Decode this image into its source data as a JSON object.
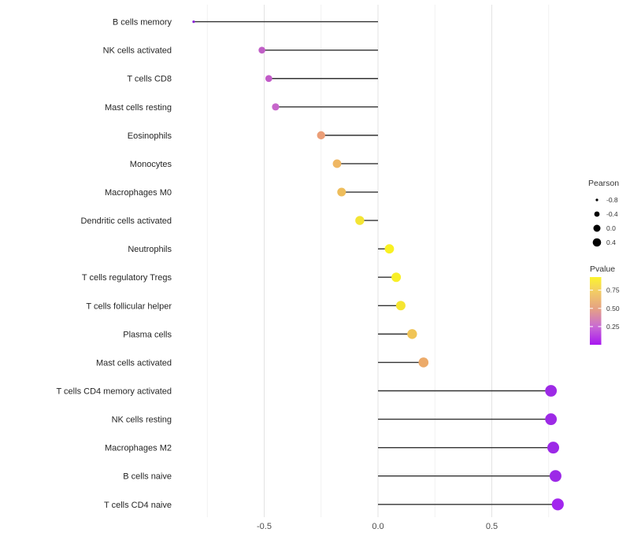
{
  "chart_data": {
    "type": "lollipop",
    "orientation": "horizontal",
    "title": "",
    "xlabel": "",
    "ylabel": "",
    "x_axis": {
      "tick_labels": [
        "-0.5",
        "0.0",
        "0.5"
      ],
      "tick_values": [
        -0.5,
        0.0,
        0.5
      ],
      "major_gridlines": [
        -0.5,
        0.0,
        0.5
      ],
      "minor_gridlines": [
        -0.75,
        -0.25,
        0.25,
        0.75
      ],
      "range": [
        -0.87,
        0.87
      ],
      "grid": "vertical-only"
    },
    "points": [
      {
        "label": "B cells memory",
        "pearson": -0.81,
        "pvalue": 0.01,
        "color": "#8b25d8",
        "r": 1.6
      },
      {
        "label": "NK cells activated",
        "pearson": -0.51,
        "pvalue": 0.2,
        "color": "#c05ec6",
        "r": 4.3
      },
      {
        "label": "T cells CD8",
        "pearson": -0.48,
        "pvalue": 0.21,
        "color": "#c25bc8",
        "r": 4.4
      },
      {
        "label": "Mast cells resting",
        "pearson": -0.45,
        "pvalue": 0.24,
        "color": "#c766cb",
        "r": 4.6
      },
      {
        "label": "Eosinophils",
        "pearson": -0.25,
        "pvalue": 0.55,
        "color": "#eb9e77",
        "r": 5.2
      },
      {
        "label": "Monocytes",
        "pearson": -0.18,
        "pvalue": 0.63,
        "color": "#efb763",
        "r": 5.4
      },
      {
        "label": "Macrophages M0",
        "pearson": -0.16,
        "pvalue": 0.65,
        "color": "#eebd5b",
        "r": 5.5
      },
      {
        "label": "Dendritic cells activated",
        "pearson": -0.08,
        "pvalue": 0.8,
        "color": "#f3e434",
        "r": 5.7
      },
      {
        "label": "Neutrophils",
        "pearson": 0.05,
        "pvalue": 0.9,
        "color": "#f9f122",
        "r": 5.9
      },
      {
        "label": "T cells regulatory  Tregs",
        "pearson": 0.08,
        "pvalue": 0.88,
        "color": "#f8ef27",
        "r": 6.0
      },
      {
        "label": "T cells follicular helper",
        "pearson": 0.1,
        "pvalue": 0.84,
        "color": "#f5e531",
        "r": 6.0
      },
      {
        "label": "Plasma cells",
        "pearson": 0.15,
        "pvalue": 0.66,
        "color": "#f0c456",
        "r": 6.2
      },
      {
        "label": "Mast cells activated",
        "pearson": 0.2,
        "pvalue": 0.57,
        "color": "#ecaa69",
        "r": 6.3
      },
      {
        "label": "T cells CD4 memory activated",
        "pearson": 0.76,
        "pvalue": 0.02,
        "color": "#9d2ae6",
        "r": 7.4
      },
      {
        "label": "NK cells resting",
        "pearson": 0.76,
        "pvalue": 0.02,
        "color": "#9d2ae6",
        "r": 7.4
      },
      {
        "label": "Macrophages M2",
        "pearson": 0.77,
        "pvalue": 0.015,
        "color": "#9c29e7",
        "r": 7.5
      },
      {
        "label": "B cells naive",
        "pearson": 0.78,
        "pvalue": 0.015,
        "color": "#9c29e7",
        "r": 7.5
      },
      {
        "label": "T cells CD4 naive",
        "pearson": 0.79,
        "pvalue": 0.01,
        "color": "#a226ee",
        "r": 7.6
      }
    ],
    "legend": {
      "position": "right",
      "pearson": {
        "title": "Pearson",
        "entries": [
          {
            "label": "-0.8",
            "r": 1.6
          },
          {
            "label": "-0.4",
            "r": 3.4
          },
          {
            "label": "0.0",
            "r": 4.5
          },
          {
            "label": "0.4",
            "r": 5.3
          }
        ],
        "dot_color": "#000000"
      },
      "pvalue": {
        "title": "Pvalue",
        "tick_labels": [
          "0.75",
          "0.50",
          "0.25"
        ],
        "tick_values": [
          0.75,
          0.5,
          0.25
        ],
        "bar_range": [
          0.0,
          0.93
        ],
        "gradient_stops": [
          {
            "offset": "0%",
            "color": "#fcf42c"
          },
          {
            "offset": "20%",
            "color": "#f3cf63"
          },
          {
            "offset": "47%",
            "color": "#e5a184"
          },
          {
            "offset": "73%",
            "color": "#c96bd3"
          },
          {
            "offset": "100%",
            "color": "#a816f0"
          }
        ]
      }
    },
    "colors": {
      "stem": "#333333",
      "gridline_major": "#e3e3e3",
      "gridline_minor": "#f1f1f1",
      "axis_tick_text": "#4d4d4d",
      "category_text": "#262626",
      "legend_text": "#333333",
      "background": "#ffffff"
    }
  }
}
